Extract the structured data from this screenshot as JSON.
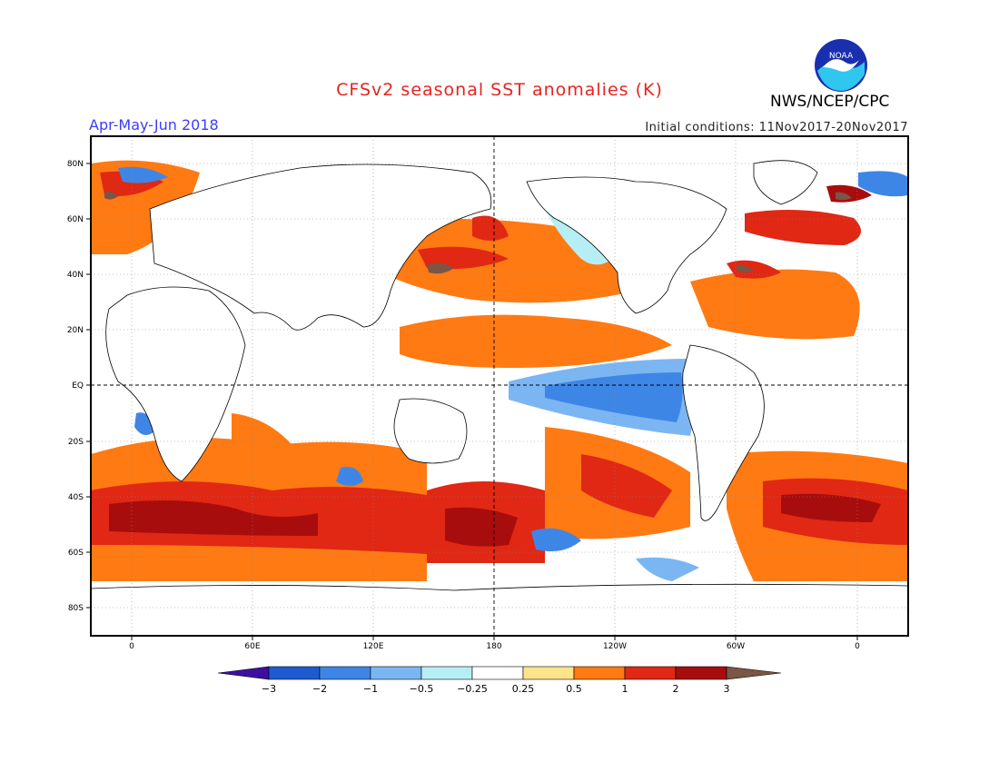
{
  "header": {
    "title": "CFSv2 seasonal SST anomalies (K)",
    "organization": "NWS/NCEP/CPC",
    "season": "Apr-May-Jun 2018",
    "initial_conditions": "Initial conditions: 11Nov2017-20Nov2017",
    "logo_text": "NOAA"
  },
  "map": {
    "lat_labels": [
      "80N",
      "60N",
      "40N",
      "20N",
      "EQ",
      "20S",
      "40S",
      "60S",
      "80S"
    ],
    "lon_labels": [
      "0",
      "60E",
      "120E",
      "180",
      "120W",
      "60W",
      "0"
    ]
  },
  "colorbar": {
    "labels": [
      "−3",
      "−2",
      "−1",
      "−0.5",
      "−0.25",
      "0.25",
      "0.5",
      "1",
      "2",
      "3"
    ],
    "colors": [
      "#3c0fa0",
      "#1e5bd1",
      "#3e86e6",
      "#7cb6f2",
      "#b6eef6",
      "#ffffff",
      "#fde38a",
      "#ff7a12",
      "#e02814",
      "#a80d0d",
      "#7b5546"
    ]
  }
}
